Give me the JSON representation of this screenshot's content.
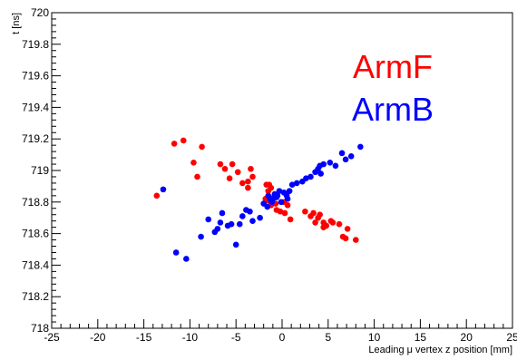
{
  "chart_data": {
    "type": "scatter",
    "title": "",
    "xlabel": "Leading μ vertex z position [mm]",
    "ylabel": "t [ns]",
    "xlim": [
      -25,
      25
    ],
    "ylim": [
      718,
      720
    ],
    "xticks": [
      -25,
      -20,
      -15,
      -10,
      -5,
      0,
      5,
      10,
      15,
      20,
      25
    ],
    "xtick_labels": [
      "-25",
      "-20",
      "-15",
      "-10",
      "-5",
      "0",
      "5",
      "10",
      "15",
      "20",
      "25"
    ],
    "yticks": [
      718,
      718.2,
      718.4,
      718.6,
      718.8,
      719,
      719.2,
      719.4,
      719.6,
      719.8,
      720
    ],
    "ytick_labels": [
      "718",
      "718.2",
      "718.4",
      "718.6",
      "718.8",
      "719",
      "719.2",
      "719.4",
      "719.6",
      "719.8",
      "720"
    ],
    "grid": false,
    "legend_position": "top-right",
    "series": [
      {
        "name": "ArmF",
        "color": "#ff0000",
        "x": [
          -13.6,
          -11.7,
          -10.7,
          -8.7,
          -9.6,
          -9.2,
          -6.7,
          -6.2,
          -5.4,
          -5.7,
          -4.8,
          -4.3,
          -3.7,
          -3.7,
          -3.2,
          -3.4,
          -1.7,
          -1.4,
          -1.2,
          -0.9,
          -1.6,
          -1.2,
          -0.7,
          -0.6,
          0.5,
          0.2,
          0.6,
          0.3,
          -0.2,
          -1.2,
          -1.5,
          -1.8,
          0.9,
          2.5,
          3.1,
          3.4,
          3.6,
          3.9,
          4.1,
          4.5,
          4.5,
          4.8,
          5.3,
          5.5,
          6.2,
          6.6,
          6.9,
          7.1,
          8.0
        ],
        "y": [
          718.84,
          719.17,
          719.19,
          719.15,
          719.05,
          718.96,
          719.04,
          719.01,
          719.04,
          718.95,
          718.99,
          718.92,
          718.93,
          718.89,
          718.96,
          719.01,
          718.91,
          718.91,
          718.89,
          718.83,
          718.81,
          718.78,
          718.79,
          718.75,
          718.85,
          718.8,
          718.78,
          718.73,
          718.74,
          718.79,
          718.87,
          718.82,
          718.69,
          718.74,
          718.71,
          718.73,
          718.67,
          718.7,
          718.72,
          718.67,
          718.64,
          718.65,
          718.68,
          718.67,
          718.66,
          718.58,
          718.57,
          718.63,
          718.56
        ],
        "marker": "circle"
      },
      {
        "name": "ArmB",
        "color": "#0000ff",
        "x": [
          -12.9,
          -11.5,
          -10.4,
          -8.8,
          -8.0,
          -7.3,
          -7.0,
          -6.7,
          -6.5,
          -5.9,
          -5.5,
          -5.0,
          -4.6,
          -4.3,
          -3.9,
          -3.5,
          -3.2,
          -2.4,
          -2.0,
          -1.6,
          -1.3,
          -1.5,
          -1.1,
          -1.0,
          -0.8,
          -0.5,
          -0.3,
          0.2,
          0.5,
          0.8,
          0.6,
          -0.1,
          -0.6,
          1.1,
          1.6,
          2.2,
          2.6,
          3.1,
          3.6,
          3.9,
          4.1,
          4.5,
          4.2,
          5.2,
          5.8,
          6.5,
          6.9,
          7.5,
          8.5
        ],
        "y": [
          718.88,
          718.48,
          718.44,
          718.58,
          718.69,
          718.61,
          718.63,
          718.67,
          718.73,
          718.65,
          718.66,
          718.53,
          718.66,
          718.71,
          718.75,
          718.74,
          718.68,
          718.7,
          718.79,
          718.77,
          718.82,
          718.84,
          718.8,
          718.82,
          718.85,
          718.84,
          718.87,
          718.86,
          718.84,
          718.87,
          718.82,
          718.8,
          718.83,
          718.91,
          718.92,
          718.93,
          718.95,
          718.96,
          718.99,
          719.01,
          719.03,
          719.04,
          718.98,
          719.05,
          719.03,
          719.11,
          719.07,
          719.09,
          719.15
        ],
        "marker": "circle"
      }
    ]
  }
}
